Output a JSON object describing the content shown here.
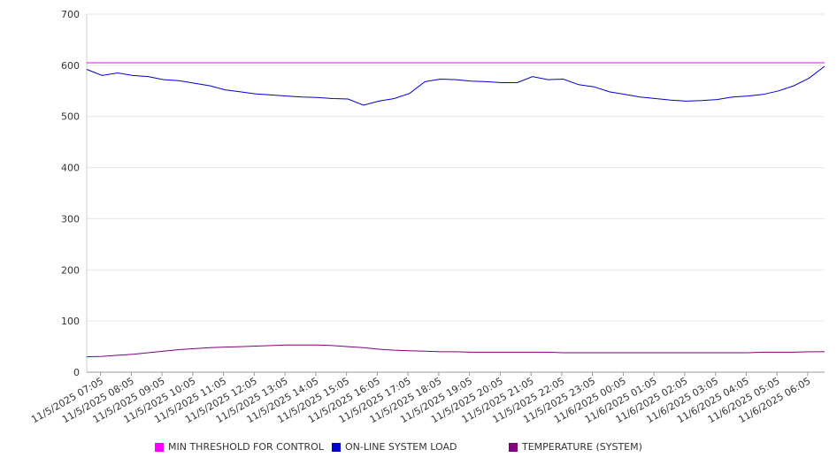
{
  "chart_data": {
    "type": "line",
    "title": "",
    "xlabel": "",
    "ylabel": "",
    "ylim": [
      0,
      700
    ],
    "yticks": [
      0,
      100,
      200,
      300,
      400,
      500,
      600,
      700
    ],
    "grid": "horizontal",
    "legend_position": "bottom",
    "x_tick_labels": [
      "11/5/2025 07:05",
      "11/5/2025 08:05",
      "11/5/2025 09:05",
      "11/5/2025 10:05",
      "11/5/2025 11:05",
      "11/5/2025 12:05",
      "11/5/2025 13:05",
      "11/5/2025 14:05",
      "11/5/2025 15:05",
      "11/5/2025 16:05",
      "11/5/2025 17:05",
      "11/5/2025 18:05",
      "11/5/2025 19:05",
      "11/5/2025 20:05",
      "11/5/2025 21:05",
      "11/5/2025 22:05",
      "11/5/2025 23:05",
      "11/6/2025 00:05",
      "11/6/2025 01:05",
      "11/6/2025 02:05",
      "11/6/2025 03:05",
      "11/6/2025 04:05",
      "11/6/2025 05:05",
      "11/6/2025 06:05"
    ],
    "x_hours": [
      0,
      0.5,
      1,
      1.5,
      2,
      2.5,
      3,
      3.5,
      4,
      4.5,
      5,
      5.5,
      6,
      6.5,
      7,
      7.5,
      8,
      8.5,
      9,
      9.5,
      10,
      10.5,
      11,
      11.5,
      12,
      12.5,
      13,
      13.5,
      14,
      14.5,
      15,
      15.5,
      16,
      16.5,
      17,
      17.5,
      18,
      18.5,
      19,
      19.5,
      20,
      20.5,
      21,
      21.5,
      22,
      22.5,
      23,
      23.5,
      24
    ],
    "series": [
      {
        "name": "MIN THRESHOLD FOR CONTROL",
        "color": "#ff00ff",
        "values": [
          605,
          605,
          605,
          605,
          605,
          605,
          605,
          605,
          605,
          605,
          605,
          605,
          605,
          605,
          605,
          605,
          605,
          605,
          605,
          605,
          605,
          605,
          605,
          605,
          605,
          605,
          605,
          605,
          605,
          605,
          605,
          605,
          605,
          605,
          605,
          605,
          605,
          605,
          605,
          605,
          605,
          605,
          605,
          605,
          605,
          605,
          605,
          605,
          605
        ]
      },
      {
        "name": "ON-LINE SYSTEM LOAD",
        "color": "#0000cc",
        "values": [
          592,
          580,
          585,
          580,
          578,
          572,
          570,
          565,
          560,
          552,
          548,
          544,
          542,
          540,
          538,
          537,
          535,
          534,
          522,
          530,
          535,
          545,
          568,
          573,
          572,
          569,
          568,
          566,
          566,
          578,
          572,
          573,
          562,
          558,
          548,
          543,
          538,
          535,
          532,
          530,
          531,
          533,
          538,
          540,
          543,
          550,
          560,
          575,
          598
        ]
      },
      {
        "name": "TEMPERATURE (SYSTEM)",
        "color": "#800080",
        "values": [
          30,
          31,
          33,
          35,
          38,
          41,
          44,
          46,
          48,
          49,
          50,
          51,
          52,
          53,
          53,
          53,
          52,
          50,
          48,
          45,
          43,
          42,
          41,
          40,
          40,
          39,
          39,
          39,
          39,
          39,
          39,
          38,
          38,
          38,
          38,
          38,
          38,
          38,
          38,
          38,
          38,
          38,
          38,
          38,
          39,
          39,
          39,
          40,
          40
        ]
      }
    ]
  }
}
